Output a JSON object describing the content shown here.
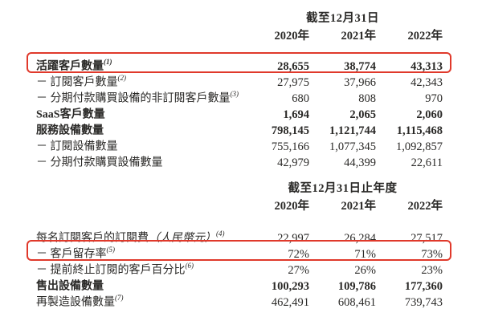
{
  "page": {
    "background_color": "#ffffff",
    "text_color": "#2a2927",
    "highlight_border_color": "#e0392b"
  },
  "table1": {
    "header": "截至12月31日",
    "years": [
      "2020年",
      "2021年",
      "2022年"
    ],
    "rows": [
      {
        "label": "活躍客戶數量",
        "sup": "(1)",
        "values": [
          "28,655",
          "38,774",
          "43,313"
        ],
        "bold": true,
        "highlight": true
      },
      {
        "label": "－ 訂閱客戶數量",
        "sup": "(2)",
        "values": [
          "27,975",
          "37,966",
          "42,343"
        ],
        "bold": false,
        "highlight": false
      },
      {
        "label": "－ 分期付款購買設備的非訂閱客戶數量",
        "sup": "(3)",
        "values": [
          "680",
          "808",
          "970"
        ],
        "bold": false,
        "highlight": false
      },
      {
        "label": "SaaS客戶數量",
        "values": [
          "1,694",
          "2,065",
          "2,060"
        ],
        "bold": true,
        "highlight": false
      },
      {
        "label": "服務設備數量",
        "values": [
          "798,145",
          "1,121,744",
          "1,115,468"
        ],
        "bold": true,
        "highlight": false
      },
      {
        "label": "－ 訂閱設備數量",
        "values": [
          "755,166",
          "1,077,345",
          "1,092,857"
        ],
        "bold": false,
        "highlight": false
      },
      {
        "label": "－ 分期付款購買設備數量",
        "values": [
          "42,979",
          "44,399",
          "22,611"
        ],
        "bold": false,
        "highlight": false
      }
    ]
  },
  "table2": {
    "header": "截至12月31日止年度",
    "years": [
      "2020年",
      "2021年",
      "2022年"
    ],
    "rows": [
      {
        "label": "每名訂閱客戶的訂閱費",
        "note": "（人民幣元）",
        "sup": "(4)",
        "values": [
          "22,997",
          "26,284",
          "27,517"
        ],
        "bold": false,
        "highlight": false
      },
      {
        "label": "－ 客戶留存率",
        "sup": "(5)",
        "values": [
          "72%",
          "71%",
          "73%"
        ],
        "bold": false,
        "highlight": true
      },
      {
        "label": "－ 提前終止訂閱的客戶百分比",
        "sup": "(6)",
        "values": [
          "27%",
          "26%",
          "23%"
        ],
        "bold": false,
        "highlight": false
      },
      {
        "label": "售出設備數量",
        "values": [
          "100,293",
          "109,786",
          "177,360"
        ],
        "bold": true,
        "highlight": false
      },
      {
        "label": "再製造設備數量",
        "sup": "(7)",
        "values": [
          "462,491",
          "608,461",
          "739,743"
        ],
        "bold": false,
        "highlight": false
      }
    ]
  }
}
